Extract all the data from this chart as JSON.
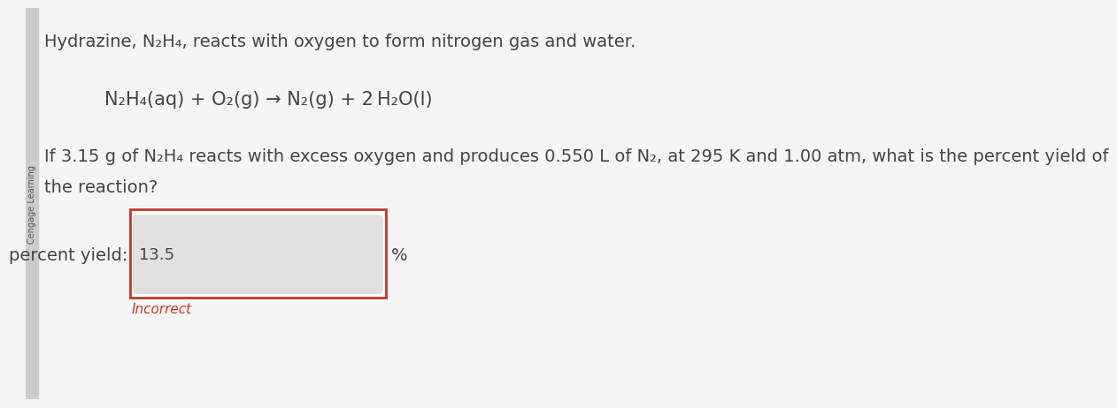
{
  "bg_color": "#f5f5f5",
  "text_color": "#444444",
  "line1": "Hydrazine, N₂H₄, reacts with oxygen to form nitrogen gas and water.",
  "line2": "N₂H₄(aq) + O₂(g) → N₂(g) + 2 H₂O(l)",
  "line3": "If 3.15 g of N₂H₄ reacts with excess oxygen and produces 0.550 L of N₂, at 295 K and 1.00 atm, what is the percent yield of",
  "line4": "the reaction?",
  "label": "percent yield:",
  "answer": "13.5",
  "feedback": "Incorrect",
  "percent_sign": "%",
  "outer_box_color": "#c0392b",
  "inner_box_facecolor": "#e0e0e0",
  "outer_box_facecolor": "#ffffff",
  "feedback_color": "#c0392b",
  "left_bar_color": "#888888",
  "font_size_main": 14,
  "font_size_equation": 14,
  "font_size_answer": 13,
  "font_size_feedback": 11,
  "left_bar_label": "Cengage Learning"
}
